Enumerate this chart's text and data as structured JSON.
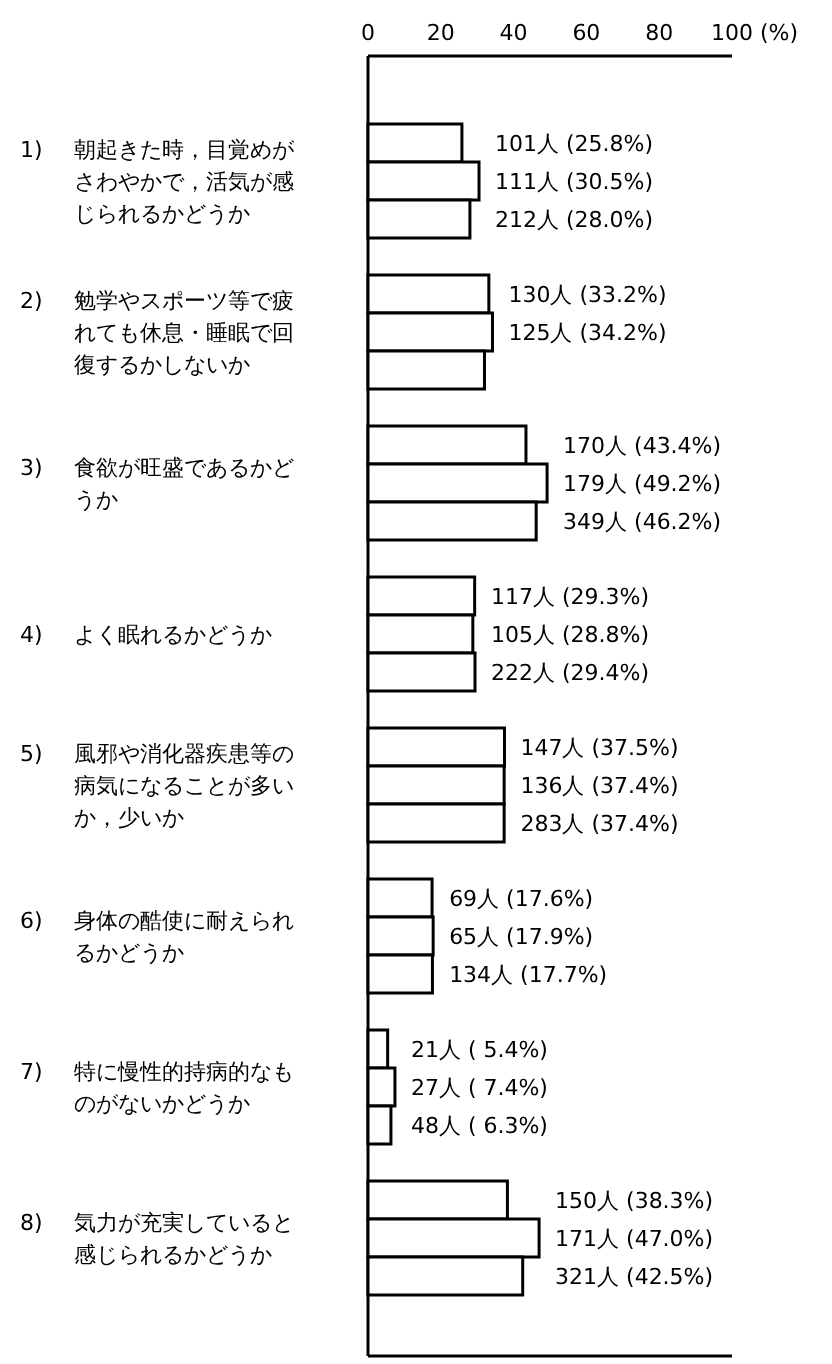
{
  "chart_data": {
    "type": "bar",
    "orientation": "horizontal",
    "xlabel": "(%)",
    "xlim": [
      0,
      100
    ],
    "xticks": [
      0,
      20,
      40,
      60,
      80,
      100
    ],
    "grid": false,
    "categories": [
      "1)　朝起きた時，目覚めがさわやかで，活気が感じられるかどうか",
      "2)　勉学やスポーツ等で疲れても休息・睡眠で回復するかしないか",
      "3)　食欲が旺盛であるかどうか",
      "4)　よく眠れるかどうか",
      "5)　風邪や消化器疾患等の病気になることが多いか，少いか",
      "6)　身体の酷使に耐えられるかどうか",
      "7)　特に慢性的持病的なものがないかどうか",
      "8)　気力が充実していると感じられるかどうか"
    ],
    "series": [
      {
        "color": "#ffffff",
        "values": [
          25.8,
          33.2,
          43.4,
          29.3,
          37.5,
          17.6,
          5.4,
          38.3
        ],
        "value_labels": [
          "101人 (25.8%)",
          "130人 (33.2%)",
          "170人 (43.4%)",
          "117人 (29.3%)",
          "147人 (37.5%)",
          "69人 (17.6%)",
          "21人 ( 5.4%)",
          "150人 (38.3%)"
        ]
      },
      {
        "color": "#ffffff",
        "values": [
          30.5,
          34.2,
          49.2,
          28.8,
          37.4,
          17.9,
          7.4,
          47.0
        ],
        "value_labels": [
          "111人 (30.5%)",
          "125人 (34.2%)",
          "179人 (49.2%)",
          "105人 (28.8%)",
          "136人 (37.4%)",
          "65人 (17.9%)",
          "27人 ( 7.4%)",
          "171人 (47.0%)"
        ]
      },
      {
        "color": "#ffffff",
        "values": [
          28.0,
          32,
          46.2,
          29.4,
          37.4,
          17.7,
          6.3,
          42.5
        ],
        "value_labels": [
          "212人 (28.0%)",
          null,
          "349人 (46.2%)",
          "222人 (29.4%)",
          "283人 (37.4%)",
          "134人 (17.7%)",
          "48人 ( 6.3%)",
          "321人 (42.5%)"
        ]
      }
    ]
  }
}
